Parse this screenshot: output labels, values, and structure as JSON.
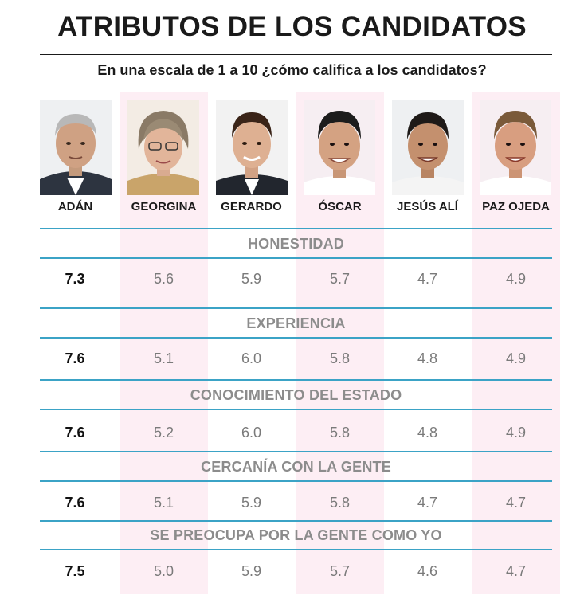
{
  "title": "ATRIBUTOS DE LOS CANDIDATOS",
  "subtitle": "En una escala de 1 a 10 ¿cómo califica a los candidatos?",
  "candidates": [
    "ADÁN",
    "GEORGINA",
    "GERARDO",
    "ÓSCAR",
    "JESÚS ALÍ",
    "PAZ OJEDA"
  ],
  "colors": {
    "rule": "#3ba3c6",
    "pink_column": "#fdeef4",
    "label_gray": "#8c8c8c"
  },
  "chart_data": {
    "type": "table",
    "title": "ATRIBUTOS DE LOS CANDIDATOS",
    "subtitle": "En una escala de 1 a 10 ¿cómo califica a los candidatos?",
    "columns": [
      "ADÁN",
      "GEORGINA",
      "GERARDO",
      "ÓSCAR",
      "JESÚS ALÍ",
      "PAZ OJEDA"
    ],
    "rows": [
      {
        "attribute": "HONESTIDAD",
        "values": [
          "7.3",
          "5.6",
          "5.9",
          "5.7",
          "4.7",
          "4.9"
        ]
      },
      {
        "attribute": "EXPERIENCIA",
        "values": [
          "7.6",
          "5.1",
          "6.0",
          "5.8",
          "4.8",
          "4.9"
        ]
      },
      {
        "attribute": "CONOCIMIENTO DEL ESTADO",
        "values": [
          "7.6",
          "5.2",
          "6.0",
          "5.8",
          "4.8",
          "4.9"
        ]
      },
      {
        "attribute": "CERCANÍA CON LA GENTE",
        "values": [
          "7.6",
          "5.1",
          "5.9",
          "5.8",
          "4.7",
          "4.7"
        ]
      },
      {
        "attribute": "SE PREOCUPA POR LA GENTE COMO YO",
        "values": [
          "7.5",
          "5.0",
          "5.9",
          "5.7",
          "4.6",
          "4.7"
        ]
      }
    ]
  }
}
